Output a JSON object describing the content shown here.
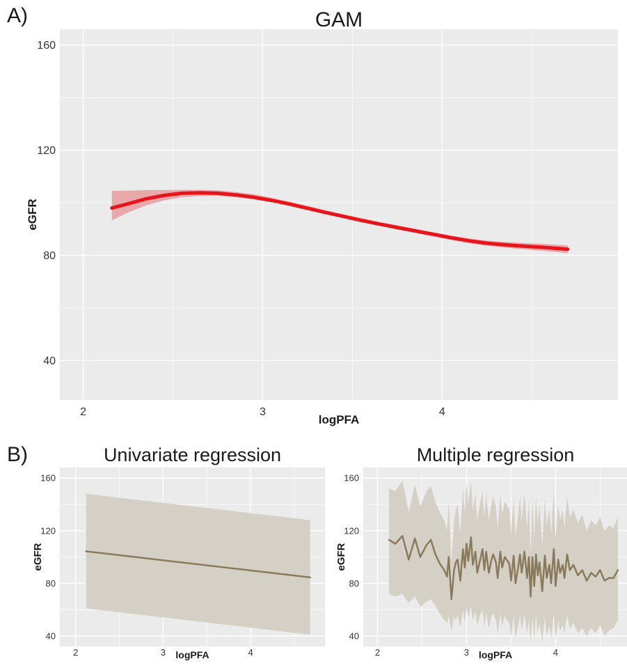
{
  "panel_labels": {
    "a": "A)",
    "b": "B)"
  },
  "colors": {
    "panel_bg": "#ebebeb",
    "grid": "#ffffff",
    "gam_line": "#e8141b",
    "gam_band": "#e8a7a9",
    "reg_line": "#8a7a5c",
    "reg_band": "#d5d0c6"
  },
  "chart_data": [
    {
      "type": "line",
      "title": "GAM",
      "xlabel": "logPFA",
      "ylabel": "eGFR",
      "xlim": [
        1.87,
        4.98
      ],
      "ylim": [
        25,
        166
      ],
      "xticks": [
        2,
        3,
        4
      ],
      "yticks": [
        40,
        80,
        120,
        160
      ],
      "grid": true,
      "series": [
        {
          "x": [
            2.16,
            2.25,
            2.35,
            2.45,
            2.55,
            2.65,
            2.75,
            2.85,
            2.95,
            3.05,
            3.15,
            3.25,
            3.35,
            3.45,
            3.55,
            3.65,
            3.75,
            3.85,
            3.95,
            4.05,
            4.15,
            4.25,
            4.35,
            4.45,
            4.55,
            4.65,
            4.7
          ],
          "y": [
            98.0,
            99.6,
            101.5,
            102.8,
            103.6,
            103.8,
            103.6,
            103.0,
            102.1,
            100.9,
            99.5,
            97.9,
            96.3,
            94.8,
            93.3,
            91.9,
            90.6,
            89.3,
            88.0,
            86.7,
            85.5,
            84.6,
            84.0,
            83.5,
            83.1,
            82.6,
            82.3
          ],
          "lower": [
            93.3,
            96.3,
            99.0,
            100.9,
            102.1,
            102.6,
            102.6,
            102.1,
            101.3,
            100.2,
            98.8,
            97.2,
            95.6,
            94.1,
            92.6,
            91.2,
            89.8,
            88.5,
            87.2,
            85.8,
            84.6,
            83.6,
            82.9,
            82.3,
            81.8,
            81.2,
            80.8
          ],
          "upper": [
            104.5,
            104.6,
            104.8,
            104.8,
            104.9,
            104.9,
            104.7,
            104.1,
            103.2,
            101.9,
            100.4,
            98.8,
            97.2,
            95.6,
            94.1,
            92.7,
            91.4,
            90.1,
            88.8,
            87.5,
            86.4,
            85.6,
            85.1,
            84.7,
            84.4,
            84.0,
            83.8
          ]
        }
      ]
    },
    {
      "type": "line",
      "title": "Univariate regression",
      "xlabel": "logPFA",
      "ylabel": "eGFR",
      "xlim": [
        1.82,
        4.85
      ],
      "ylim": [
        32,
        168
      ],
      "xticks": [
        2,
        3,
        4
      ],
      "yticks": [
        40,
        80,
        120,
        160
      ],
      "grid": true,
      "series": [
        {
          "x": [
            2.12,
            4.68
          ],
          "y": [
            104.3,
            84.5
          ],
          "lower": [
            61,
            41
          ],
          "upper": [
            148,
            128
          ]
        }
      ]
    },
    {
      "type": "line",
      "title": "Multiple regression",
      "xlabel": "logPFA",
      "ylabel": "eGFR",
      "xlim": [
        1.84,
        4.81
      ],
      "ylim": [
        32,
        168
      ],
      "xticks": [
        2,
        3,
        4
      ],
      "yticks": [
        40,
        80,
        120,
        160
      ],
      "grid": true,
      "series": [
        {
          "x": [
            2.13,
            2.2,
            2.28,
            2.35,
            2.42,
            2.48,
            2.55,
            2.6,
            2.65,
            2.7,
            2.75,
            2.78,
            2.8,
            2.83,
            2.86,
            2.88,
            2.9,
            2.93,
            2.96,
            2.98,
            3.0,
            3.02,
            3.05,
            3.07,
            3.1,
            3.12,
            3.15,
            3.18,
            3.2,
            3.22,
            3.25,
            3.28,
            3.3,
            3.33,
            3.35,
            3.38,
            3.4,
            3.43,
            3.45,
            3.48,
            3.5,
            3.53,
            3.55,
            3.58,
            3.6,
            3.62,
            3.65,
            3.68,
            3.7,
            3.72,
            3.74,
            3.76,
            3.78,
            3.8,
            3.82,
            3.85,
            3.88,
            3.9,
            3.93,
            3.95,
            3.98,
            4.0,
            4.03,
            4.05,
            4.08,
            4.1,
            4.13,
            4.16,
            4.2,
            4.25,
            4.3,
            4.35,
            4.4,
            4.45,
            4.5,
            4.55,
            4.6,
            4.65,
            4.7
          ],
          "y": [
            113,
            110,
            116,
            98,
            114,
            100,
            109,
            113,
            102,
            95,
            90,
            85,
            100,
            68,
            90,
            96,
            98,
            82,
            106,
            92,
            110,
            97,
            115,
            94,
            104,
            88,
            97,
            106,
            90,
            104,
            88,
            98,
            102,
            96,
            84,
            104,
            92,
            100,
            98,
            95,
            82,
            101,
            80,
            92,
            102,
            88,
            104,
            84,
            100,
            70,
            100,
            78,
            102,
            86,
            96,
            74,
            101,
            84,
            94,
            80,
            106,
            78,
            98,
            88,
            94,
            84,
            102,
            90,
            94,
            86,
            90,
            82,
            88,
            85,
            90,
            82,
            84,
            84,
            90
          ],
          "lower": [
            72,
            70,
            72,
            65,
            70,
            62,
            66,
            68,
            63,
            57,
            52,
            50,
            55,
            44,
            55,
            52,
            56,
            46,
            60,
            50,
            62,
            54,
            62,
            52,
            58,
            48,
            55,
            60,
            47,
            58,
            46,
            55,
            57,
            52,
            42,
            57,
            48,
            55,
            52,
            50,
            40,
            55,
            38,
            48,
            56,
            44,
            56,
            42,
            52,
            36,
            54,
            38,
            55,
            42,
            50,
            36,
            54,
            40,
            48,
            38,
            58,
            38,
            52,
            44,
            48,
            42,
            56,
            45,
            50,
            42,
            46,
            40,
            46,
            42,
            48,
            40,
            44,
            46,
            52
          ],
          "upper": [
            152,
            150,
            158,
            134,
            155,
            138,
            150,
            154,
            142,
            134,
            128,
            120,
            142,
            96,
            128,
            136,
            140,
            118,
            152,
            134,
            155,
            140,
            158,
            136,
            148,
            128,
            140,
            150,
            130,
            148,
            128,
            140,
            146,
            138,
            122,
            148,
            132,
            142,
            140,
            136,
            118,
            144,
            116,
            132,
            146,
            128,
            148,
            122,
            144,
            102,
            144,
            114,
            146,
            126,
            140,
            108,
            144,
            124,
            136,
            118,
            150,
            114,
            140,
            128,
            136,
            122,
            146,
            130,
            136,
            126,
            132,
            120,
            128,
            124,
            130,
            120,
            124,
            122,
            130
          ]
        }
      ]
    }
  ]
}
